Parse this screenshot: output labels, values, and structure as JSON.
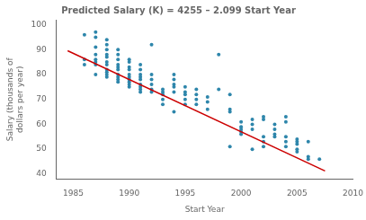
{
  "chart_data": {
    "type": "scatter",
    "title": "Predicted Salary (K) = 4255 – 2.099 Start Year",
    "xlabel": "Start Year",
    "ylabel": "Salary (thousands of\ndollars per year)",
    "xlim": [
      1983.5,
      2010
    ],
    "ylim": [
      38,
      102
    ],
    "xticks": [
      1985,
      1990,
      1995,
      2000,
      2005,
      2010
    ],
    "yticks": [
      40,
      50,
      60,
      70,
      80,
      90,
      100
    ],
    "grid": false,
    "series": [
      {
        "type": "scatter",
        "color": "#2e86ab",
        "x": [
          1986,
          1986,
          1986,
          1987,
          1987,
          1987,
          1987,
          1987,
          1987,
          1987,
          1987,
          1988,
          1988,
          1988,
          1988,
          1988,
          1988,
          1988,
          1988,
          1988,
          1988,
          1988,
          1989,
          1989,
          1989,
          1989,
          1989,
          1989,
          1989,
          1989,
          1989,
          1989,
          1990,
          1990,
          1990,
          1990,
          1990,
          1990,
          1990,
          1990,
          1990,
          1990,
          1991,
          1991,
          1991,
          1991,
          1991,
          1991,
          1991,
          1991,
          1991,
          1992,
          1992,
          1992,
          1992,
          1992,
          1992,
          1993,
          1993,
          1993,
          1993,
          1993,
          1994,
          1994,
          1994,
          1994,
          1994,
          1994,
          1995,
          1995,
          1995,
          1995,
          1995,
          1996,
          1996,
          1996,
          1996,
          1997,
          1997,
          1997,
          1998,
          1998,
          1999,
          1999,
          1999,
          1999,
          2000,
          2000,
          2000,
          2000,
          2000,
          2001,
          2001,
          2001,
          2001,
          2002,
          2002,
          2002,
          2002,
          2002,
          2003,
          2003,
          2003,
          2003,
          2004,
          2004,
          2004,
          2004,
          2004,
          2005,
          2005,
          2005,
          2005,
          2005,
          2006,
          2006,
          2006,
          2007
        ],
        "values": [
          96,
          86,
          84,
          97,
          95,
          91,
          88,
          86,
          85,
          84,
          80,
          94,
          92,
          90,
          88,
          87,
          85,
          84,
          82,
          81,
          80,
          79,
          90,
          88,
          86,
          84,
          83,
          82,
          80,
          79,
          78,
          77,
          86,
          85,
          83,
          82,
          80,
          79,
          78,
          77,
          76,
          75,
          84,
          82,
          80,
          79,
          78,
          76,
          75,
          74,
          73,
          92,
          80,
          78,
          76,
          74,
          73,
          74,
          73,
          72,
          70,
          68,
          80,
          78,
          76,
          75,
          73,
          65,
          75,
          73,
          72,
          70,
          68,
          74,
          72,
          70,
          68,
          71,
          69,
          66,
          88,
          74,
          72,
          66,
          65,
          51,
          61,
          59,
          58,
          57,
          56,
          62,
          60,
          58,
          50,
          63,
          62,
          55,
          53,
          51,
          60,
          58,
          56,
          55,
          63,
          61,
          55,
          53,
          51,
          54,
          53,
          52,
          50,
          49,
          53,
          47,
          46,
          46
        ]
      },
      {
        "type": "line",
        "color": "#cc0000",
        "x": [
          1984.5,
          2007.5
        ],
        "values": [
          89.5345,
          41.2575
        ]
      }
    ]
  }
}
